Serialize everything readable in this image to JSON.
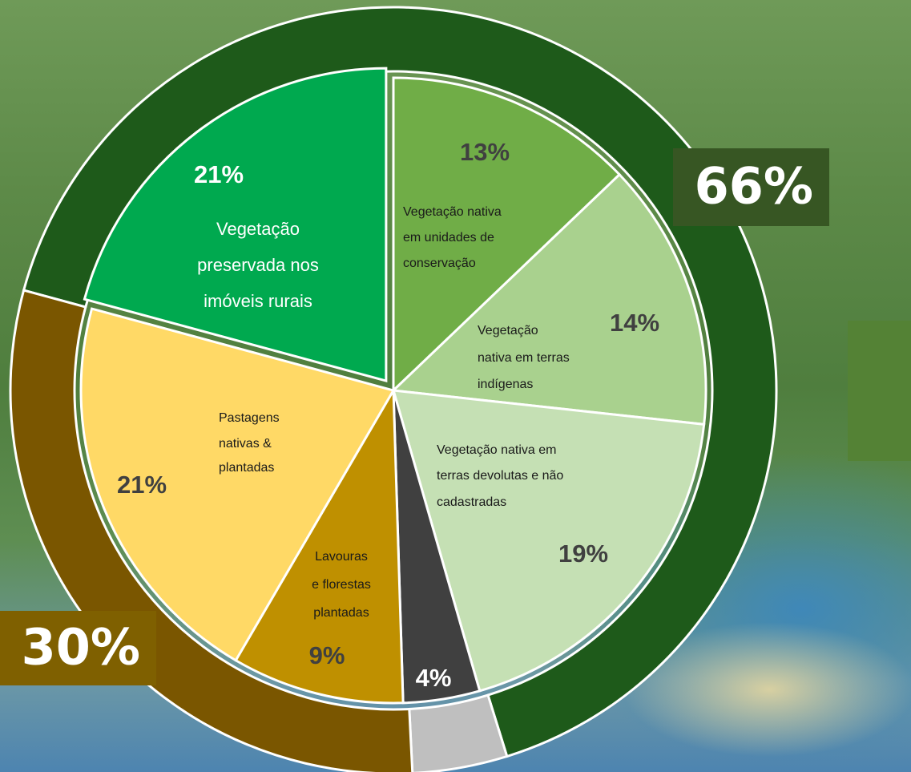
{
  "chart_data": {
    "type": "pie",
    "categories": [
      [
        "Vegetação",
        "preservada nos",
        "imóveis rurais"
      ],
      [
        "Vegetação nativa",
        "em unidades de",
        "conservação"
      ],
      [
        "Vegetação",
        "nativa em terras",
        "indígenas"
      ],
      [
        "Vegetação nativa em",
        "terras devolutas e não",
        "cadastradas"
      ],
      null,
      [
        "Lavouras",
        "e florestas",
        "plantadas"
      ],
      [
        "Pastagens",
        "nativas &",
        "plantadas"
      ]
    ],
    "values": [
      21,
      13,
      14,
      19,
      4,
      9,
      21
    ],
    "value_labels": [
      "21%",
      "13%",
      "14%",
      "19%",
      "4%",
      "9%",
      "21%"
    ],
    "colors": [
      "#00a94f",
      "#70ad47",
      "#a9d18e",
      "#c5e0b4",
      "#404040",
      "#bf9000",
      "#ffd966"
    ],
    "outer": {
      "values": [
        66,
        4,
        30
      ],
      "value_labels": [
        "66%",
        null,
        "30%"
      ],
      "colors": [
        "#1e5a1a",
        "#bfbfbf",
        "#7a5600"
      ]
    }
  }
}
